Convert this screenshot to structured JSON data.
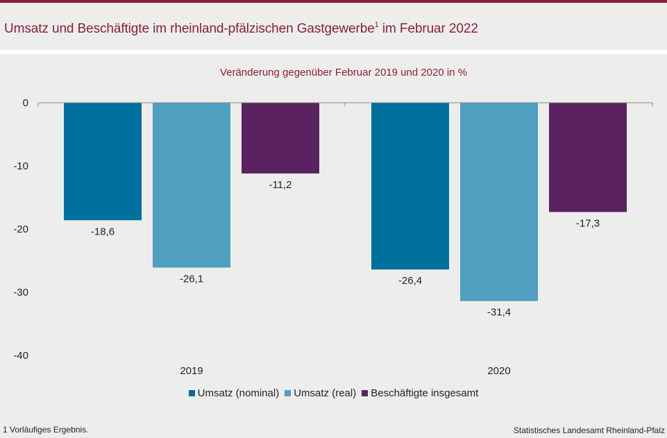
{
  "header": {
    "title": "Umsatz und Beschäftigte im rheinland-pfälzischen Gastgewerbe",
    "title_sup": "1",
    "title_suffix": " im Februar 2022"
  },
  "chart_data": {
    "type": "bar",
    "subtitle": "Veränderung  gegenüber  Februar 2019 und 2020 in %",
    "categories": [
      "2019",
      "2020"
    ],
    "series": [
      {
        "name": "Umsatz (nominal)",
        "values": [
          -18.6,
          -26.4
        ],
        "color": "#00709e"
      },
      {
        "name": "Umsatz (real)",
        "values": [
          -26.1,
          -31.4
        ],
        "color": "#4e9fc0"
      },
      {
        "name": "Beschäftigte insgesamt",
        "values": [
          -11.2,
          -17.3
        ],
        "color": "#5a2260"
      }
    ],
    "value_labels": [
      [
        "-18,6",
        "-26,4"
      ],
      [
        "-26,1",
        "-31,4"
      ],
      [
        "-11,2",
        "-17,3"
      ]
    ],
    "ylim": [
      -40,
      0
    ],
    "yticks": [
      0,
      -10,
      -20,
      -30,
      -40
    ],
    "legend_position": "bottom",
    "grid": false
  },
  "footnote": "1 Vorläufiges  Ergebnis.",
  "source": "Statistisches Landesamt  Rheinland-Pfalz"
}
